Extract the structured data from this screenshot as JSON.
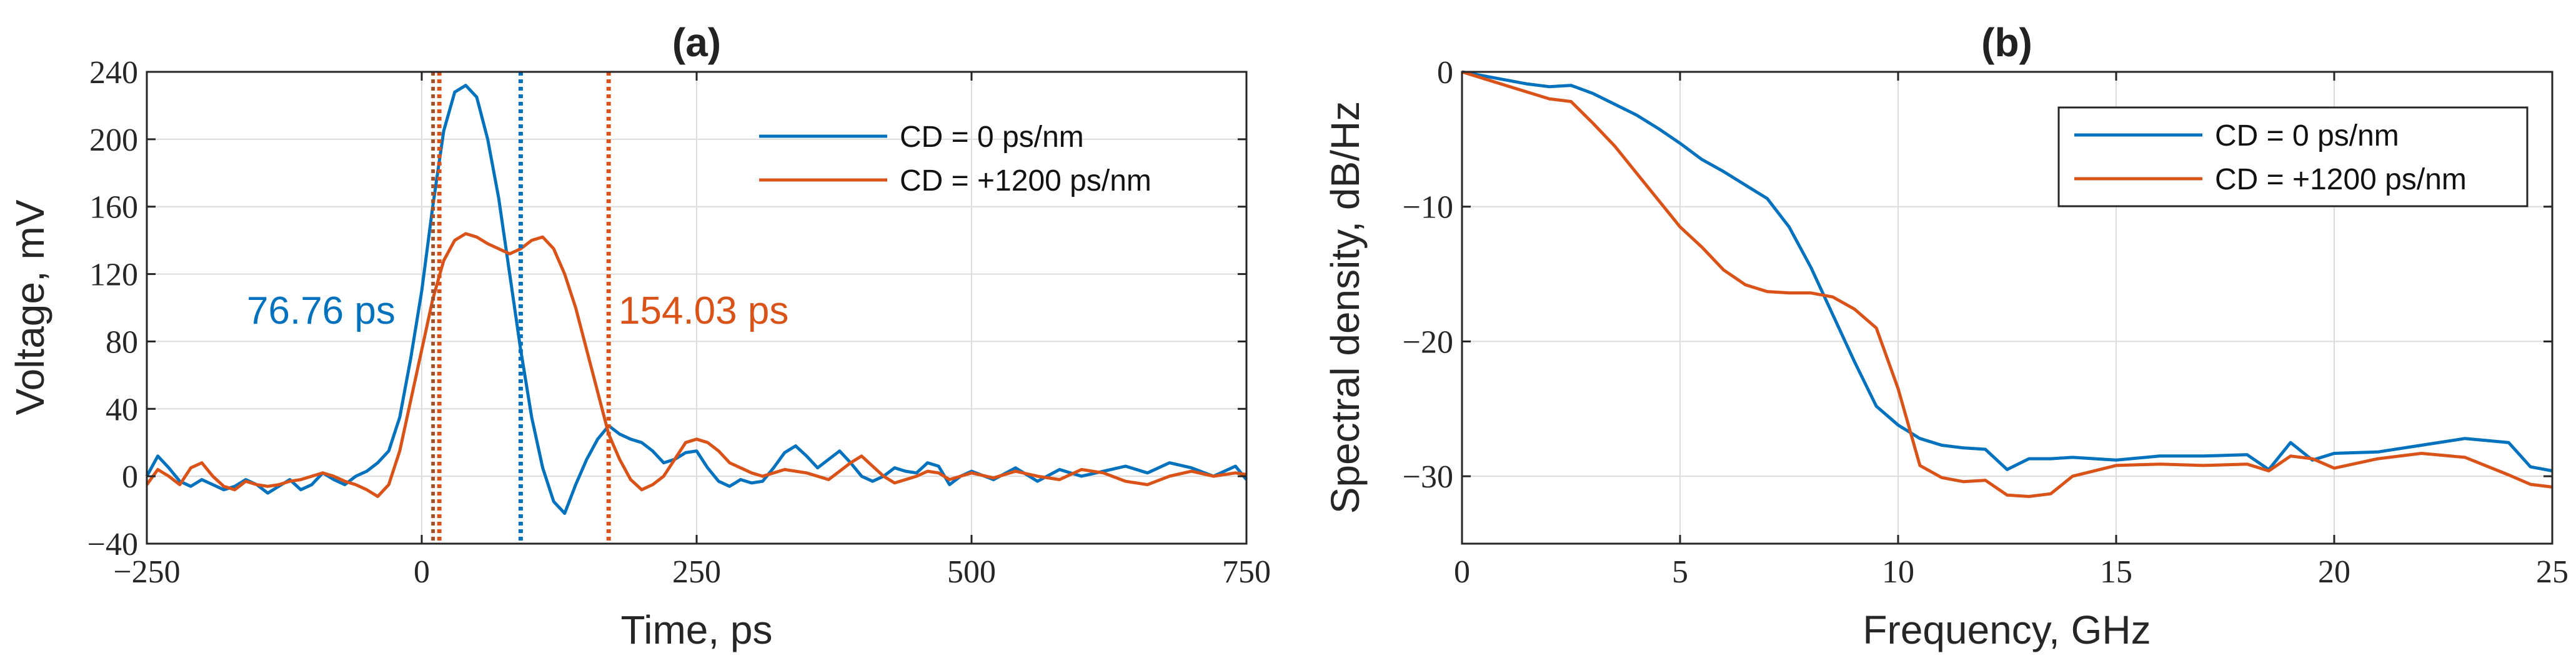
{
  "chart_data": [
    {
      "type": "line",
      "title": "(a)",
      "xlabel": "Time, ps",
      "ylabel": "Voltage, mV",
      "xlim": [
        -250,
        750
      ],
      "ylim": [
        -40,
        240
      ],
      "xticks": [
        -250,
        0,
        250,
        500,
        750
      ],
      "yticks": [
        -40,
        0,
        40,
        80,
        120,
        160,
        200,
        240
      ],
      "xtick_labels": [
        "−250",
        "0",
        "250",
        "500",
        "750"
      ],
      "ytick_labels": [
        "−40",
        "0",
        "40",
        "80",
        "120",
        "160",
        "200",
        "240"
      ],
      "grid": true,
      "legend_position": "top-right",
      "series": [
        {
          "name": "CD = 0 ps/nm",
          "color": "#0072BD",
          "x": [
            -250,
            -240,
            -230,
            -220,
            -210,
            -200,
            -190,
            -180,
            -170,
            -160,
            -150,
            -140,
            -130,
            -120,
            -110,
            -100,
            -90,
            -80,
            -70,
            -60,
            -50,
            -40,
            -30,
            -20,
            -10,
            0,
            10,
            20,
            30,
            40,
            50,
            60,
            70,
            80,
            90,
            100,
            110,
            120,
            130,
            140,
            150,
            160,
            170,
            180,
            190,
            200,
            210,
            220,
            230,
            240,
            250,
            260,
            270,
            280,
            290,
            300,
            310,
            320,
            330,
            340,
            350,
            360,
            370,
            380,
            390,
            400,
            410,
            420,
            430,
            440,
            450,
            460,
            470,
            480,
            490,
            500,
            520,
            540,
            560,
            580,
            600,
            620,
            640,
            660,
            680,
            700,
            720,
            740,
            750
          ],
          "y": [
            0,
            12,
            5,
            -3,
            -6,
            -2,
            -5,
            -8,
            -6,
            -2,
            -5,
            -10,
            -6,
            -2,
            -8,
            -5,
            2,
            -2,
            -5,
            0,
            3,
            8,
            15,
            35,
            70,
            110,
            160,
            205,
            228,
            232,
            225,
            200,
            165,
            120,
            75,
            35,
            5,
            -15,
            -22,
            -5,
            10,
            22,
            30,
            25,
            22,
            20,
            15,
            8,
            10,
            14,
            15,
            5,
            -3,
            -6,
            -2,
            -4,
            -3,
            5,
            14,
            18,
            12,
            5,
            10,
            15,
            8,
            0,
            -3,
            0,
            5,
            3,
            2,
            8,
            6,
            -5,
            0,
            3,
            -2,
            5,
            -3,
            4,
            0,
            3,
            6,
            2,
            8,
            5,
            0,
            6,
            -2
          ],
          "vline_x": 90
        },
        {
          "name": "CD = +1200 ps/nm",
          "color": "#D95319",
          "x": [
            -250,
            -240,
            -230,
            -220,
            -210,
            -200,
            -190,
            -180,
            -170,
            -160,
            -150,
            -140,
            -130,
            -120,
            -110,
            -100,
            -90,
            -80,
            -70,
            -60,
            -50,
            -40,
            -30,
            -20,
            -10,
            0,
            10,
            20,
            30,
            40,
            50,
            60,
            70,
            80,
            90,
            100,
            110,
            120,
            130,
            140,
            150,
            160,
            170,
            180,
            190,
            200,
            210,
            220,
            230,
            240,
            250,
            260,
            270,
            280,
            290,
            300,
            310,
            320,
            330,
            340,
            350,
            360,
            370,
            380,
            390,
            400,
            410,
            420,
            430,
            440,
            450,
            460,
            470,
            480,
            490,
            500,
            520,
            540,
            560,
            580,
            600,
            620,
            640,
            660,
            680,
            700,
            720,
            740,
            750
          ],
          "y": [
            -5,
            4,
            0,
            -5,
            5,
            8,
            0,
            -6,
            -8,
            -3,
            -5,
            -6,
            -5,
            -3,
            -2,
            0,
            2,
            0,
            -3,
            -5,
            -8,
            -12,
            -5,
            15,
            45,
            75,
            105,
            128,
            140,
            144,
            142,
            138,
            135,
            132,
            135,
            140,
            142,
            135,
            120,
            100,
            75,
            50,
            25,
            10,
            -2,
            -8,
            -5,
            0,
            10,
            20,
            22,
            20,
            15,
            8,
            5,
            2,
            0,
            2,
            4,
            3,
            2,
            0,
            -2,
            3,
            8,
            12,
            6,
            0,
            -4,
            -2,
            0,
            3,
            2,
            -2,
            0,
            2,
            -1,
            3,
            0,
            -2,
            4,
            2,
            -3,
            -5,
            0,
            3,
            0,
            2,
            1
          ],
          "vline_x": 170
        }
      ],
      "vline_extra": {
        "x": 16,
        "color": "#D95319"
      },
      "annotations": [
        {
          "text": "76.76 ps",
          "color": "#0072BD"
        },
        {
          "text": "154.03 ps",
          "color": "#D95319"
        }
      ]
    },
    {
      "type": "line",
      "title": "(b)",
      "xlabel": "Frequency, GHz",
      "ylabel": "Spectral density, dB/Hz",
      "xlim": [
        0,
        25
      ],
      "ylim": [
        -35,
        0
      ],
      "xticks": [
        0,
        5,
        10,
        15,
        20,
        25
      ],
      "yticks": [
        0,
        -10,
        -20,
        -30
      ],
      "xtick_labels": [
        "0",
        "5",
        "10",
        "15",
        "20",
        "25"
      ],
      "ytick_labels": [
        "0",
        "−10",
        "−20",
        "−30"
      ],
      "grid": true,
      "legend_position": "top-right",
      "series": [
        {
          "name": "CD = 0 ps/nm",
          "color": "#0072BD",
          "x": [
            0,
            0.5,
            1,
            1.5,
            2,
            2.5,
            3,
            3.5,
            4,
            4.5,
            5,
            5.5,
            6,
            6.5,
            7,
            7.5,
            8,
            8.5,
            9,
            9.5,
            10,
            10.5,
            11,
            11.5,
            12,
            12.5,
            13,
            13.5,
            14,
            15,
            16,
            17,
            18,
            18.5,
            19,
            19.5,
            20,
            21,
            22,
            23,
            24,
            24.5,
            25
          ],
          "y": [
            0,
            -0.3,
            -0.6,
            -0.9,
            -1.1,
            -1.0,
            -1.6,
            -2.4,
            -3.2,
            -4.2,
            -5.3,
            -6.5,
            -7.4,
            -8.4,
            -9.4,
            -11.5,
            -14.5,
            -18,
            -21.5,
            -24.8,
            -26.2,
            -27.2,
            -27.7,
            -27.9,
            -28.0,
            -29.5,
            -28.7,
            -28.7,
            -28.6,
            -28.8,
            -28.5,
            -28.5,
            -28.4,
            -29.5,
            -27.5,
            -28.8,
            -28.3,
            -28.2,
            -27.7,
            -27.2,
            -27.5,
            -29.3,
            -29.6
          ]
        },
        {
          "name": "CD = +1200 ps/nm",
          "color": "#D95319",
          "x": [
            0,
            0.5,
            1,
            1.5,
            2,
            2.5,
            3,
            3.5,
            4,
            4.5,
            5,
            5.5,
            6,
            6.5,
            7,
            7.5,
            8,
            8.5,
            9,
            9.5,
            10,
            10.5,
            11,
            11.5,
            12,
            12.5,
            13,
            13.5,
            14,
            15,
            16,
            17,
            18,
            18.5,
            19,
            19.5,
            20,
            21,
            22,
            23,
            24,
            24.5,
            25
          ],
          "y": [
            0,
            -0.5,
            -1.0,
            -1.5,
            -2.0,
            -2.2,
            -3.8,
            -5.5,
            -7.5,
            -9.5,
            -11.5,
            -13.0,
            -14.7,
            -15.8,
            -16.3,
            -16.4,
            -16.4,
            -16.7,
            -17.6,
            -19.0,
            -23.5,
            -29.2,
            -30.1,
            -30.4,
            -30.3,
            -31.4,
            -31.5,
            -31.3,
            -30.0,
            -29.2,
            -29.1,
            -29.2,
            -29.1,
            -29.6,
            -28.5,
            -28.7,
            -29.4,
            -28.7,
            -28.3,
            -28.6,
            -29.9,
            -30.6,
            -30.8
          ]
        }
      ]
    }
  ]
}
